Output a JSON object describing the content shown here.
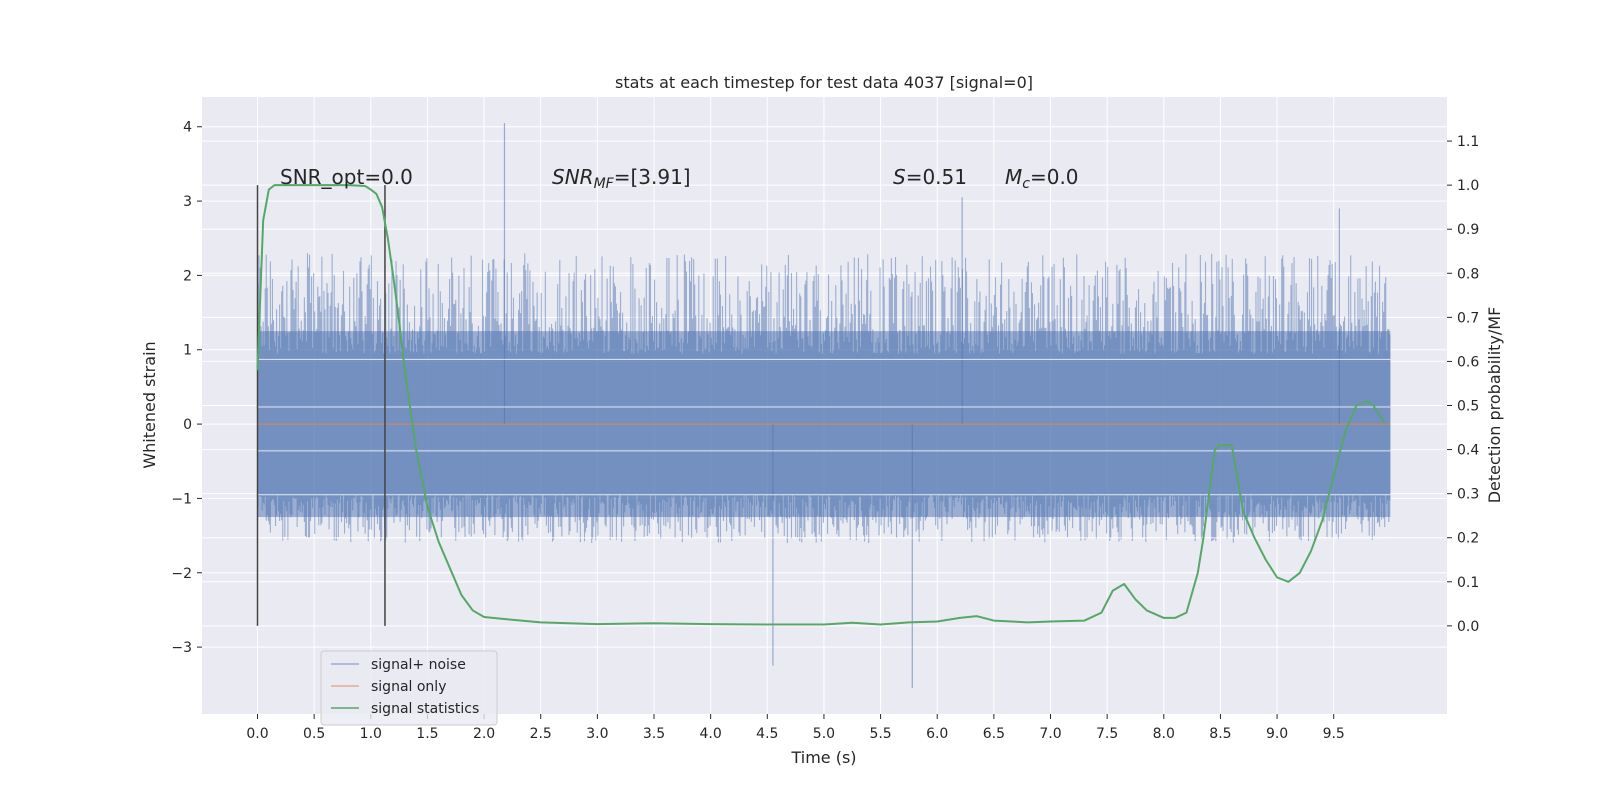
{
  "chart_data": {
    "type": "line",
    "title": "stats at each timestep for test data 4037 [signal=0]",
    "xlabel": "Time (s)",
    "ylabel_left": "Whitened strain",
    "ylabel_right": "Detection probability/MF",
    "xlim": [
      -0.49,
      10.5
    ],
    "ylim_left": [
      -3.9,
      4.4
    ],
    "ylim_right": [
      -0.2,
      1.2
    ],
    "x_ticks": [
      "0.0",
      "0.5",
      "1.0",
      "1.5",
      "2.0",
      "2.5",
      "3.0",
      "3.5",
      "4.0",
      "4.5",
      "5.0",
      "5.5",
      "6.0",
      "6.5",
      "7.0",
      "7.5",
      "8.0",
      "8.5",
      "9.0",
      "9.5"
    ],
    "y_left_ticks": [
      "4",
      "3",
      "2",
      "1",
      "0",
      "−1",
      "−2",
      "−3"
    ],
    "y_right_ticks": [
      "1.1",
      "1.0",
      "0.9",
      "0.8",
      "0.7",
      "0.6",
      "0.5",
      "0.4",
      "0.3",
      "0.2",
      "0.1",
      "0.0"
    ],
    "grid": true,
    "legend_position": "lower-left",
    "annotations": {
      "snr_opt": "SNR_opt=0.0",
      "snr_mf_prefix": "SNR",
      "snr_mf_sub": "MF",
      "snr_mf_value": "=[3.91]",
      "s_label": "S",
      "s_value": "=0.51",
      "mc_label": "M",
      "mc_sub": "c",
      "mc_value": "=0.0"
    },
    "vertical_markers_x": [
      0.0,
      1.125
    ],
    "series": [
      {
        "name": "signal+ noise",
        "axis": "left",
        "color": "#4c72b0",
        "x_range": [
          0.0,
          10.0
        ],
        "typical_envelope": [
          -1.6,
          2.3
        ],
        "notable_peaks": [
          [
            2.18,
            4.05
          ],
          [
            5.78,
            -3.55
          ],
          [
            4.55,
            -3.25
          ],
          [
            6.22,
            3.05
          ],
          [
            9.55,
            2.9
          ]
        ]
      },
      {
        "name": "signal only",
        "axis": "left",
        "color": "#dd8452",
        "x": [
          0.0,
          10.0
        ],
        "y": [
          0.0,
          0.0
        ]
      },
      {
        "name": "signal statistics",
        "axis": "right",
        "color": "#55a868",
        "x": [
          0.0,
          0.05,
          0.1,
          0.15,
          0.25,
          0.4,
          0.6,
          0.8,
          0.95,
          1.0,
          1.05,
          1.1,
          1.15,
          1.2,
          1.25,
          1.3,
          1.4,
          1.5,
          1.6,
          1.7,
          1.8,
          1.9,
          2.0,
          2.2,
          2.5,
          3.0,
          3.5,
          4.0,
          4.5,
          5.0,
          5.25,
          5.5,
          5.75,
          6.0,
          6.2,
          6.35,
          6.5,
          6.8,
          7.0,
          7.3,
          7.45,
          7.55,
          7.65,
          7.75,
          7.85,
          8.0,
          8.1,
          8.2,
          8.3,
          8.35,
          8.4,
          8.45,
          8.5,
          8.6,
          8.7,
          8.8,
          8.9,
          9.0,
          9.1,
          9.2,
          9.3,
          9.4,
          9.5,
          9.6,
          9.7,
          9.8,
          9.85,
          9.9,
          9.95
        ],
        "y": [
          0.58,
          0.92,
          0.99,
          1.0,
          1.0,
          1.0,
          1.0,
          1.0,
          0.998,
          0.99,
          0.98,
          0.95,
          0.88,
          0.79,
          0.69,
          0.58,
          0.4,
          0.27,
          0.19,
          0.13,
          0.07,
          0.035,
          0.02,
          0.015,
          0.008,
          0.004,
          0.006,
          0.004,
          0.003,
          0.003,
          0.007,
          0.003,
          0.008,
          0.01,
          0.018,
          0.022,
          0.012,
          0.008,
          0.01,
          0.012,
          0.03,
          0.08,
          0.095,
          0.06,
          0.035,
          0.018,
          0.018,
          0.03,
          0.12,
          0.2,
          0.3,
          0.4,
          0.41,
          0.41,
          0.26,
          0.2,
          0.15,
          0.11,
          0.1,
          0.12,
          0.17,
          0.24,
          0.34,
          0.44,
          0.5,
          0.51,
          0.5,
          0.48,
          0.46
        ]
      }
    ]
  }
}
